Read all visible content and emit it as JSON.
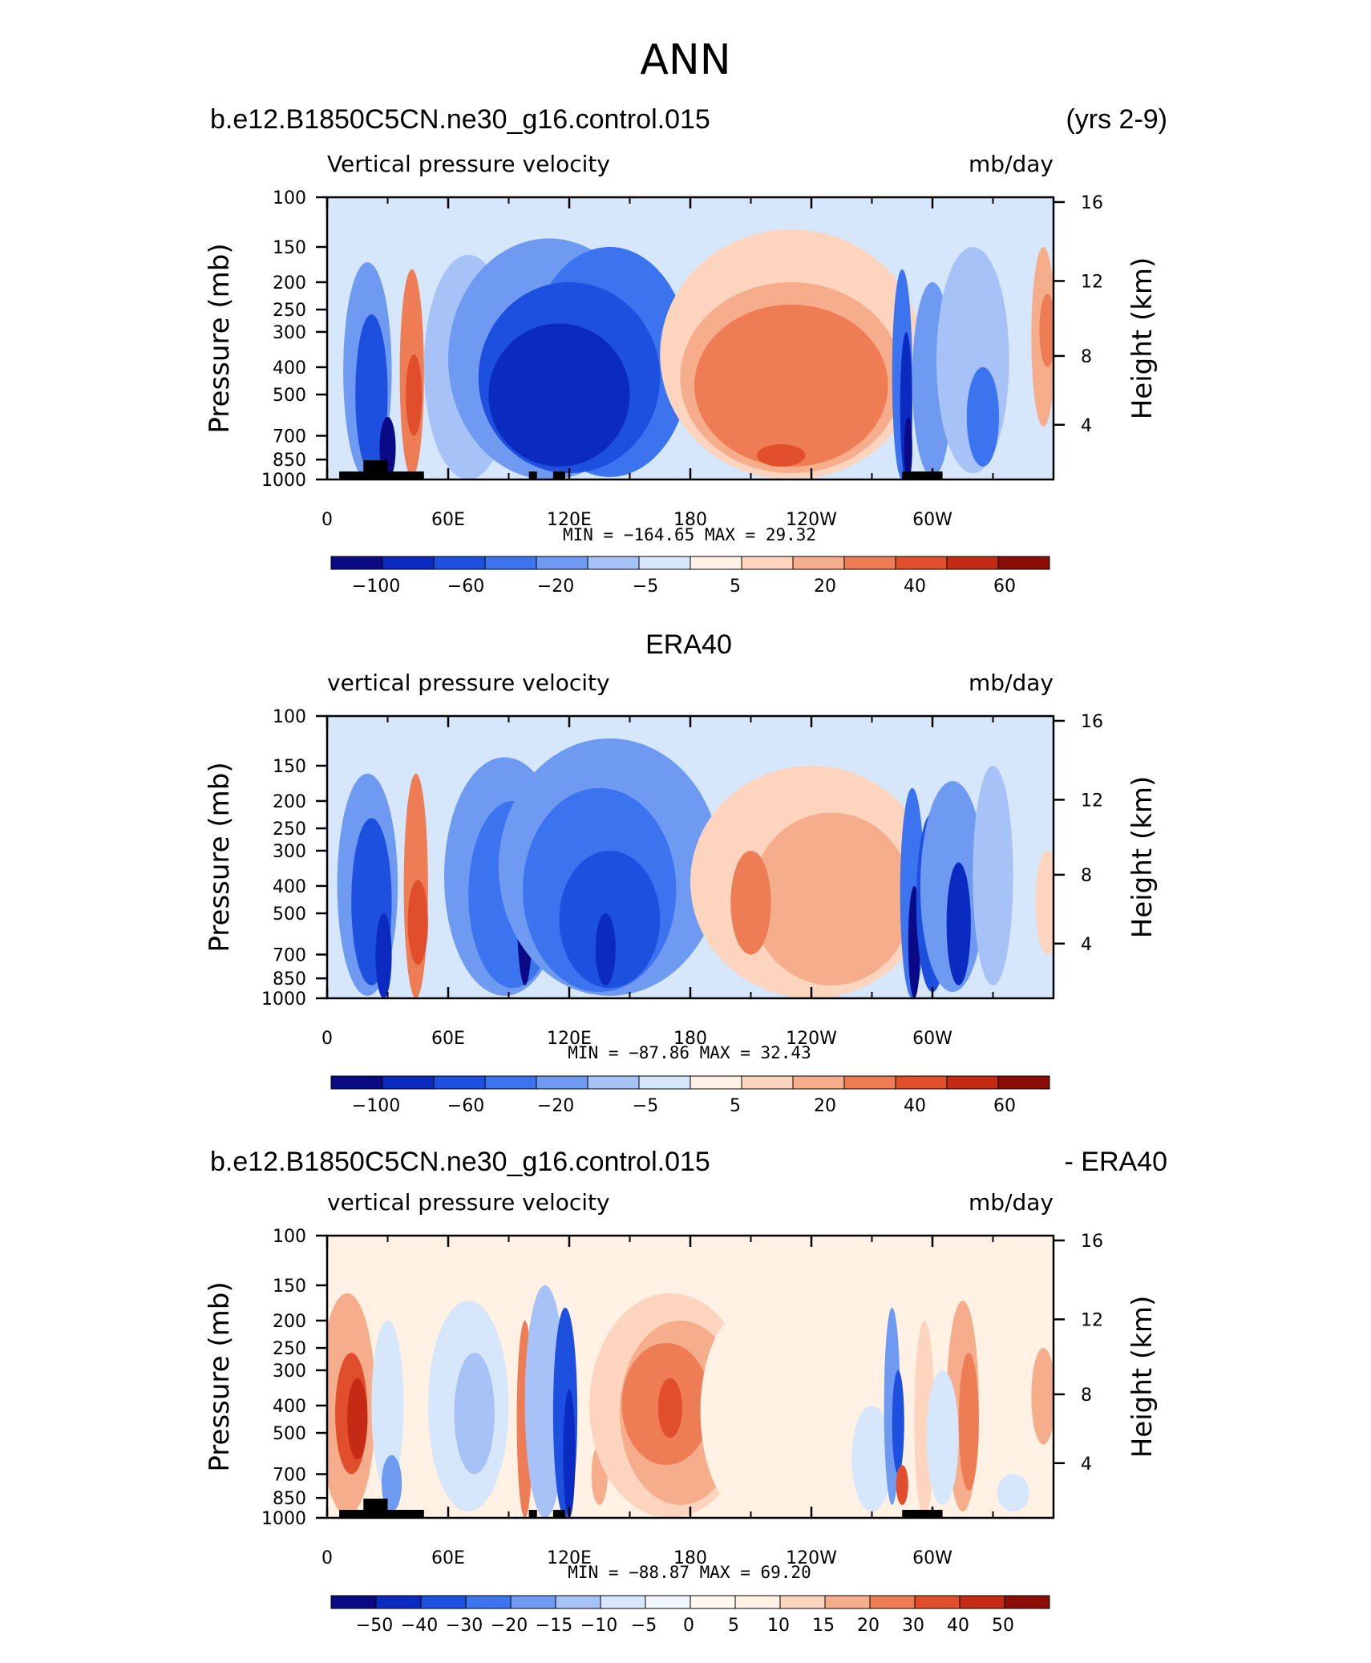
{
  "main_title": "ANN",
  "chart_data": [
    {
      "type": "heatmap",
      "title_left": "b.e12.B1850C5CN.ne30_g16.control.015",
      "title_right": "(yrs 2-9)",
      "center_title": "",
      "variable_label": "Vertical pressure velocity",
      "units": "mb/day",
      "ylabel": "Pressure (mb)",
      "y2label": "Height (km)",
      "y_ticks": [
        100,
        150,
        200,
        250,
        300,
        400,
        500,
        700,
        850,
        1000
      ],
      "y2_ticks": [
        "16",
        "12",
        "8",
        "4"
      ],
      "x_ticks": [
        "0",
        "60E",
        "120E",
        "180",
        "120W",
        "60W"
      ],
      "stats": "MIN = −164.65   MAX =   29.32",
      "min": -164.65,
      "max": 29.32,
      "colorbar_labels": [
        "−100",
        "−60",
        "−20",
        "−5",
        "5",
        "20",
        "40",
        "60"
      ],
      "scale": "wind",
      "field": "model"
    },
    {
      "type": "heatmap",
      "title_left": "",
      "title_right": "",
      "center_title": "ERA40",
      "variable_label": "vertical pressure velocity",
      "units": "mb/day",
      "ylabel": "Pressure (mb)",
      "y2label": "Height (km)",
      "y_ticks": [
        100,
        150,
        200,
        250,
        300,
        400,
        500,
        700,
        850,
        1000
      ],
      "y2_ticks": [
        "16",
        "12",
        "8",
        "4"
      ],
      "x_ticks": [
        "0",
        "60E",
        "120E",
        "180",
        "120W",
        "60W"
      ],
      "stats": "MIN = −87.86   MAX =   32.43",
      "min": -87.86,
      "max": 32.43,
      "colorbar_labels": [
        "−100",
        "−60",
        "−20",
        "−5",
        "5",
        "20",
        "40",
        "60"
      ],
      "scale": "wind",
      "field": "obs"
    },
    {
      "type": "heatmap",
      "title_left": "b.e12.B1850C5CN.ne30_g16.control.015",
      "title_right": "- ERA40",
      "center_title": "",
      "variable_label": "vertical pressure velocity",
      "units": "mb/day",
      "ylabel": "Pressure (mb)",
      "y2label": "Height (km)",
      "y_ticks": [
        100,
        150,
        200,
        250,
        300,
        400,
        500,
        700,
        850,
        1000
      ],
      "y2_ticks": [
        "16",
        "12",
        "8",
        "4"
      ],
      "x_ticks": [
        "0",
        "60E",
        "120E",
        "180",
        "120W",
        "60W"
      ],
      "stats": "MIN = −88.87   MAX =   69.20",
      "min": -88.87,
      "max": 69.2,
      "colorbar_labels": [
        "−50",
        "−40",
        "−30",
        "−20",
        "−15",
        "−10",
        "−5",
        "0",
        "5",
        "10",
        "15",
        "20",
        "30",
        "40",
        "50"
      ],
      "scale": "diff",
      "field": "diff"
    }
  ],
  "colors": {
    "wind_scale": [
      "#0a0a86",
      "#0b2ac0",
      "#1e50e0",
      "#3c74f0",
      "#6e9af2",
      "#a7c2f6",
      "#d6e6fb",
      "#fff1e4",
      "#fdd4bd",
      "#f6ad8c",
      "#ee7d55",
      "#e14e2c",
      "#c42a14",
      "#8c0d06"
    ],
    "diff_scale": [
      "#0a0a86",
      "#0b2ac0",
      "#1e50e0",
      "#3c74f0",
      "#6e9af2",
      "#a7c2f6",
      "#d6e6fb",
      "#f2f6fd",
      "#fff8f0",
      "#fff1e4",
      "#fdd4bd",
      "#f6ad8c",
      "#ee7d55",
      "#e14e2c",
      "#c42a14",
      "#8c0d06"
    ]
  }
}
